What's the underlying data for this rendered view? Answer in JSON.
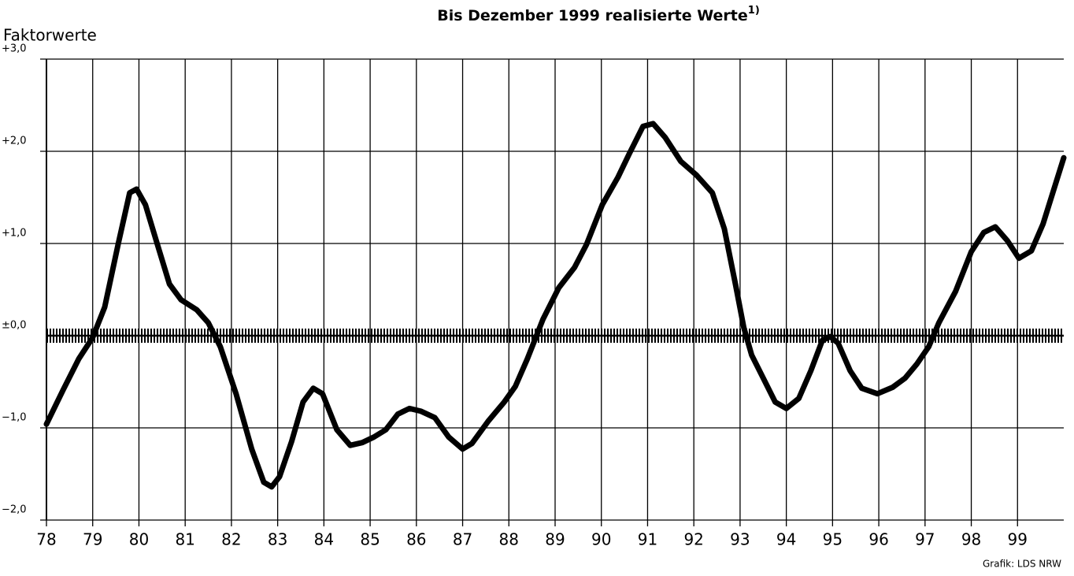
{
  "chart_data": {
    "type": "line",
    "title": "Bis Dezember 1999 realisierte Werte",
    "title_footnote": "1)",
    "y_label": "Faktorwerte",
    "source": "Grafik: LDS NRW",
    "xlim": [
      78,
      100
    ],
    "xticks": [
      78,
      79,
      80,
      81,
      82,
      83,
      84,
      85,
      86,
      87,
      88,
      89,
      90,
      91,
      92,
      93,
      94,
      95,
      96,
      97,
      98,
      99
    ],
    "ylim": [
      -2,
      3
    ],
    "yticks": [
      {
        "value": -2,
        "label": "−2,0"
      },
      {
        "value": -1,
        "label": "−1,0"
      },
      {
        "value": 0,
        "label": "±0,0"
      },
      {
        "value": 1,
        "label": "+1,0"
      },
      {
        "value": 2,
        "label": "+2,0"
      },
      {
        "value": 3,
        "label": "+3,0"
      }
    ],
    "grid": true,
    "series": [
      {
        "color": "#000000",
        "x": [
          78.0,
          78.36,
          78.7,
          79.0,
          79.26,
          79.55,
          79.8,
          79.95,
          80.14,
          80.4,
          80.66,
          80.91,
          81.25,
          81.5,
          81.76,
          82.1,
          82.44,
          82.7,
          82.87,
          83.04,
          83.3,
          83.55,
          83.77,
          83.97,
          84.28,
          84.57,
          84.83,
          85.08,
          85.34,
          85.6,
          85.85,
          86.1,
          86.4,
          86.7,
          87.0,
          87.2,
          87.55,
          87.9,
          88.14,
          88.4,
          88.74,
          89.08,
          89.42,
          89.68,
          90.02,
          90.36,
          90.6,
          90.9,
          91.12,
          91.38,
          91.72,
          92.06,
          92.4,
          92.66,
          92.9,
          93.08,
          93.25,
          93.5,
          93.76,
          94.0,
          94.27,
          94.53,
          94.78,
          94.95,
          95.12,
          95.38,
          95.63,
          95.97,
          96.3,
          96.57,
          96.82,
          97.08,
          97.3,
          97.66,
          98.0,
          98.27,
          98.52,
          98.78,
          99.03,
          99.3,
          99.55,
          100.0
        ],
        "values": [
          -0.96,
          -0.59,
          -0.25,
          -0.02,
          0.31,
          0.99,
          1.55,
          1.59,
          1.42,
          0.99,
          0.56,
          0.39,
          0.28,
          0.14,
          -0.12,
          -0.63,
          -1.23,
          -1.59,
          -1.64,
          -1.53,
          -1.15,
          -0.72,
          -0.57,
          -0.63,
          -1.02,
          -1.19,
          -1.16,
          -1.1,
          -1.02,
          -0.85,
          -0.79,
          -0.82,
          -0.89,
          -1.1,
          -1.23,
          -1.17,
          -0.93,
          -0.72,
          -0.55,
          -0.25,
          0.18,
          0.52,
          0.74,
          0.99,
          1.42,
          1.72,
          1.97,
          2.27,
          2.3,
          2.15,
          1.89,
          1.74,
          1.55,
          1.16,
          0.56,
          0.09,
          -0.21,
          -0.46,
          -0.72,
          -0.79,
          -0.68,
          -0.38,
          -0.05,
          -0.01,
          -0.08,
          -0.38,
          -0.57,
          -0.63,
          -0.56,
          -0.46,
          -0.31,
          -0.12,
          0.14,
          0.48,
          0.91,
          1.12,
          1.18,
          1.03,
          0.84,
          0.92,
          1.21,
          1.93
        ]
      }
    ]
  }
}
